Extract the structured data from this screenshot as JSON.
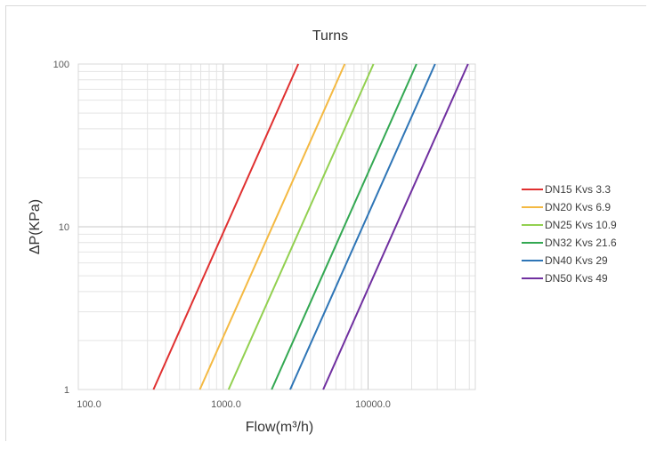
{
  "chart_data": {
    "type": "line",
    "title": "Turns",
    "xlabel": "Flow(m³/h)",
    "ylabel": "ΔP(KPa)",
    "x_scale": "log",
    "y_scale": "log",
    "xlim": [
      100,
      55000
    ],
    "ylim": [
      1,
      100
    ],
    "x_ticks": [
      "100.0",
      "1000.0",
      "10000.0"
    ],
    "y_ticks": [
      "1",
      "10",
      "100"
    ],
    "grid": true,
    "legend_position": "right",
    "series": [
      {
        "name": "DN15 Kvs 3.3",
        "color": "#e03030",
        "x": [
          330,
          3300
        ],
        "y": [
          1,
          100
        ]
      },
      {
        "name": "DN20 Kvs 6.9",
        "color": "#f4b942",
        "x": [
          690,
          6900
        ],
        "y": [
          1,
          100
        ]
      },
      {
        "name": "DN25 Kvs 10.9",
        "color": "#92d050",
        "x": [
          1090,
          10900
        ],
        "y": [
          1,
          100
        ]
      },
      {
        "name": "DN32 Kvs 21.6",
        "color": "#33a852",
        "x": [
          2160,
          21600
        ],
        "y": [
          1,
          100
        ]
      },
      {
        "name": "DN40 Kvs 29",
        "color": "#2e75b6",
        "x": [
          2900,
          29000
        ],
        "y": [
          1,
          100
        ]
      },
      {
        "name": "DN50 Kvs 49",
        "color": "#7030a0",
        "x": [
          4900,
          49000
        ],
        "y": [
          1,
          100
        ]
      }
    ]
  }
}
